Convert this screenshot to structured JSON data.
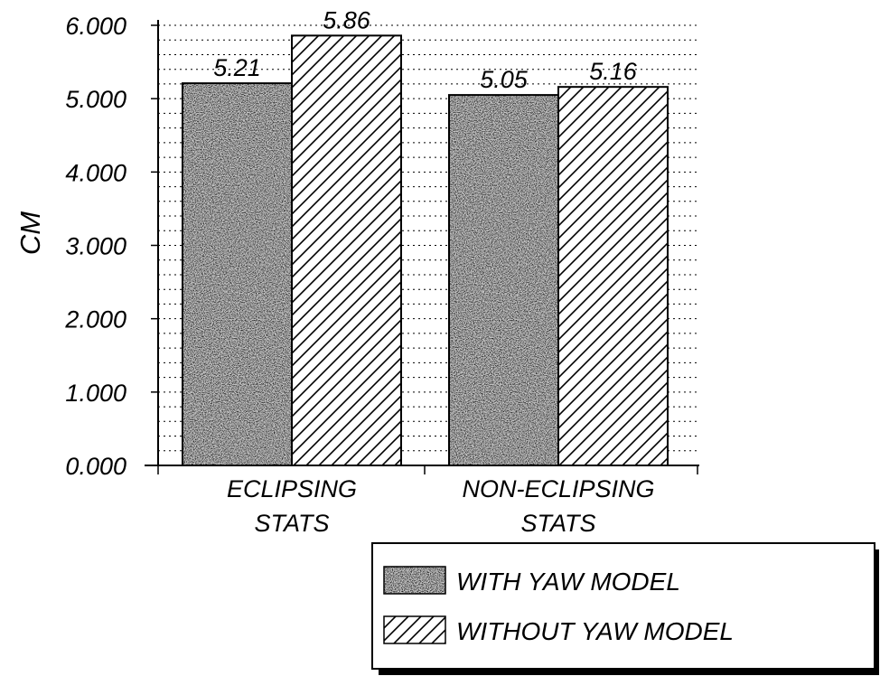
{
  "chart_data": {
    "type": "bar",
    "title": "",
    "xlabel": "",
    "ylabel": "CM",
    "ylim": [
      0,
      6
    ],
    "y_ticks": [
      "0.000",
      "1.000",
      "2.000",
      "3.000",
      "4.000",
      "5.000",
      "6.000"
    ],
    "grid": true,
    "legend_position": "bottom-right",
    "categories": [
      [
        "ECLIPSING",
        "STATS"
      ],
      [
        "NON-ECLIPSING",
        "STATS"
      ]
    ],
    "series": [
      {
        "name": "WITH YAW MODEL",
        "values": [
          5.21,
          5.05
        ],
        "data_labels": [
          "5.21",
          "5.05"
        ],
        "pattern": "stipple"
      },
      {
        "name": "WITHOUT YAW MODEL",
        "values": [
          5.86,
          5.16
        ],
        "data_labels": [
          "5.86",
          "5.16"
        ],
        "pattern": "hatch"
      }
    ]
  }
}
